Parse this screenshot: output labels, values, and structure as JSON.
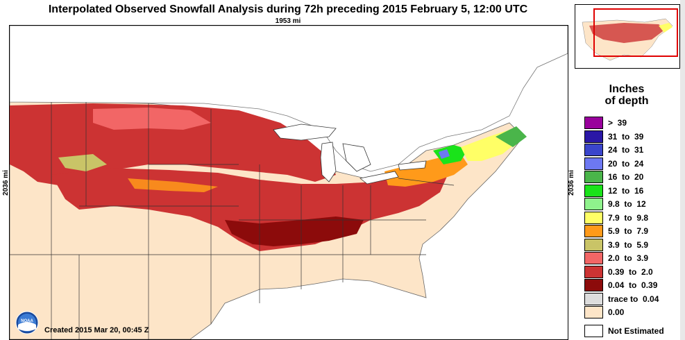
{
  "title": "Interpolated Observed Snowfall Analysis during 72h preceding 2015 February 5, 12:00 UTC",
  "scale": {
    "top": "1953 mi",
    "left": "2036 mi",
    "right": "2036 mi"
  },
  "legend": {
    "title_line1": "Inches",
    "title_line2": "of depth",
    "rows": [
      {
        "label": ">  39",
        "color": "#99009c"
      },
      {
        "label": "31  to  39",
        "color": "#2a17a6"
      },
      {
        "label": "24  to  31",
        "color": "#3a45cc"
      },
      {
        "label": "20  to  24",
        "color": "#6d78f2"
      },
      {
        "label": "16  to  20",
        "color": "#4ab54a"
      },
      {
        "label": "12  to  16",
        "color": "#1ae31a"
      },
      {
        "label": "9.8  to  12",
        "color": "#8ff28c"
      },
      {
        "label": "7.9  to  9.8",
        "color": "#ffff66"
      },
      {
        "label": "5.9  to  7.9",
        "color": "#ff9a1a"
      },
      {
        "label": "3.9  to  5.9",
        "color": "#c9c467"
      },
      {
        "label": "2.0  to  3.9",
        "color": "#f26666"
      },
      {
        "label": "0.39  to  2.0",
        "color": "#cc3333"
      },
      {
        "label": "0.04  to  0.39",
        "color": "#8c0b0b"
      },
      {
        "label": "trace to  0.04",
        "color": "#dddddd"
      },
      {
        "label": "0.00",
        "color": "#fde5c8"
      }
    ],
    "not_estimated": {
      "label": "Not Estimated",
      "color": "#ffffff"
    }
  },
  "created": "Created 2015 Mar 20, 00:45 Z",
  "logo_text": "NOAA",
  "colors": {
    "land_zero": "#fde5c8",
    "water": "#ffffff",
    "border": "#000000"
  }
}
